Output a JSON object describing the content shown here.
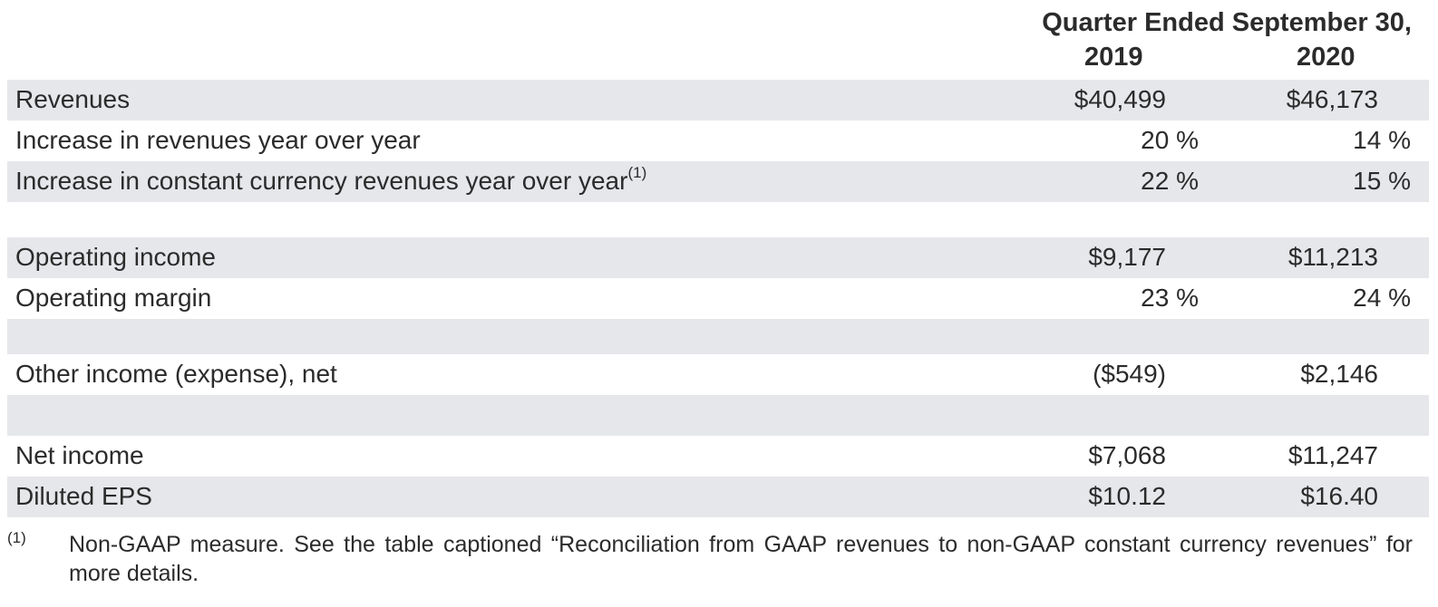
{
  "header": {
    "period": "Quarter Ended September 30,",
    "years": [
      "2019",
      "2020"
    ]
  },
  "rows": [
    {
      "label": "Revenues",
      "sup": "",
      "v2019": "$40,499",
      "v2020": "$46,173"
    },
    {
      "label": "Increase in revenues year over year",
      "sup": "",
      "v2019": "20 %",
      "v2020": "14 %"
    },
    {
      "label": "Increase in constant currency revenues year over year",
      "sup": "(1)",
      "v2019": "22 %",
      "v2020": "15 %"
    },
    {
      "label": "Operating income",
      "sup": "",
      "v2019": "$9,177",
      "v2020": "$11,213"
    },
    {
      "label": "Operating margin",
      "sup": "",
      "v2019": "23 %",
      "v2020": "24 %"
    },
    {
      "label": "Other income (expense), net",
      "sup": "",
      "v2019": "($549)",
      "v2020": "$2,146"
    },
    {
      "label": "Net income",
      "sup": "",
      "v2019": "$7,068",
      "v2020": "$11,247"
    },
    {
      "label": "Diluted EPS",
      "sup": "",
      "v2019": "$10.12",
      "v2020": "$16.40"
    }
  ],
  "footnote": {
    "mark": "(1)",
    "text": "Non-GAAP measure. See the table captioned “Reconciliation from GAAP revenues to non-GAAP constant currency revenues” for more details."
  }
}
